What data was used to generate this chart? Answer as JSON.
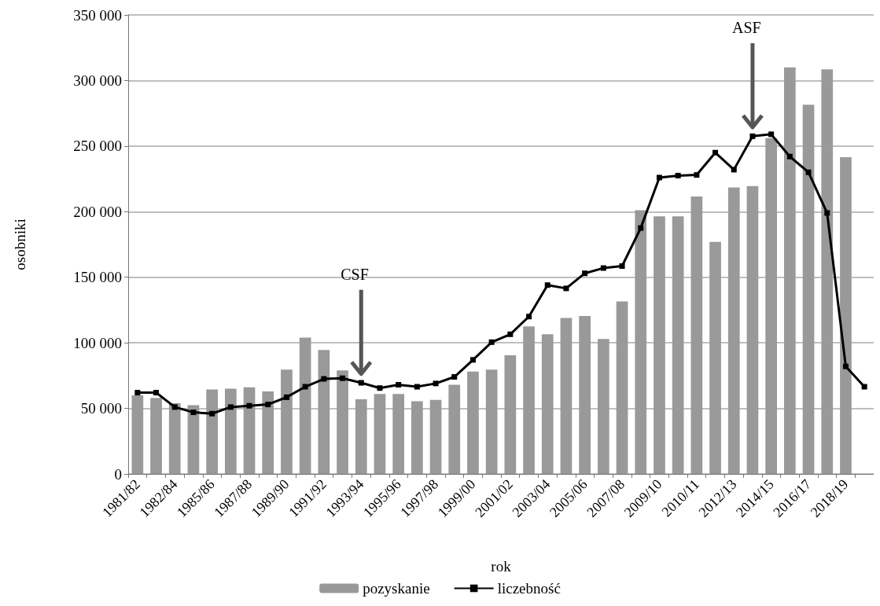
{
  "chart_data": {
    "type": "bar",
    "xlabel": "rok",
    "ylabel": "osobniki",
    "categories": [
      "1981/82",
      null,
      "1982/84",
      null,
      "1985/86",
      null,
      "1987/88",
      null,
      "1989/90",
      null,
      "1991/92",
      null,
      "1993/94",
      null,
      "1995/96",
      null,
      "1997/98",
      null,
      "1999/00",
      null,
      "2001/02",
      null,
      "2003/04",
      null,
      "2005/06",
      null,
      "2007/08",
      null,
      "2009/10",
      null,
      "2010/11",
      null,
      "2012/13",
      null,
      "2014/15",
      null,
      "2016/17",
      null,
      "2018/19",
      null
    ],
    "series": [
      {
        "name": "pozyskanie",
        "color": "#999999",
        "values": [
          60000,
          58000,
          54000,
          52500,
          64500,
          65000,
          66000,
          63000,
          79500,
          104000,
          94500,
          79000,
          57000,
          61000,
          61000,
          55500,
          56500,
          68000,
          78000,
          79500,
          90500,
          112500,
          106500,
          119000,
          120500,
          103000,
          131500,
          201000,
          196500,
          196500,
          211500,
          177000,
          218500,
          219500,
          256000,
          310000,
          281500,
          308500,
          241500,
          null
        ]
      },
      {
        "name": "liczebność",
        "type": "line",
        "color": "#000000",
        "marker": "square",
        "values": [
          62000,
          62000,
          51000,
          47000,
          46000,
          51000,
          52000,
          53000,
          58500,
          66500,
          72500,
          73000,
          69500,
          65500,
          68000,
          66500,
          69000,
          74000,
          87000,
          100500,
          106500,
          120000,
          144000,
          141500,
          153000,
          157000,
          158500,
          187500,
          226000,
          227500,
          228000,
          245000,
          232000,
          257500,
          259000,
          242000,
          230000,
          199000,
          82000,
          66500
        ]
      }
    ],
    "ylim": [
      0,
      350000
    ],
    "yticks": [
      0,
      {
        "value": 50000,
        "label": "50 000"
      },
      {
        "value": 100000,
        "label": "100 000"
      },
      {
        "value": 150000,
        "label": "150 000"
      },
      {
        "value": 200000,
        "label": "200 000"
      },
      {
        "value": 250000,
        "label": "250 000"
      },
      {
        "value": 300000,
        "label": "300 000"
      },
      {
        "value": 350000,
        "label": "350 000"
      }
    ],
    "grid": "y",
    "legend": "bottom",
    "annotations": [
      "CSF",
      "ASF"
    ]
  }
}
